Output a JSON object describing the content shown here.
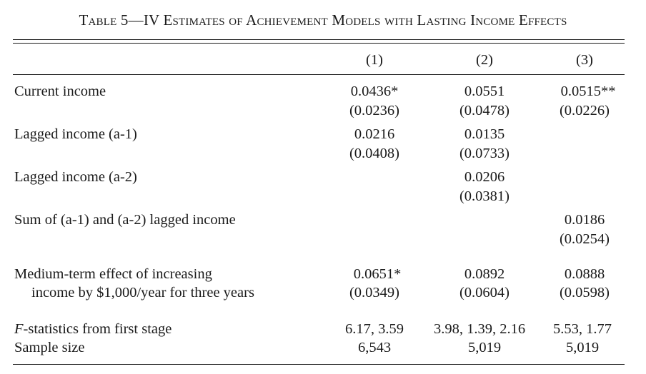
{
  "title": "Table 5—IV Estimates of Achievement Models with Lasting Income Effects",
  "columns": [
    "(1)",
    "(2)",
    "(3)"
  ],
  "rows": [
    {
      "label": "Current income",
      "coef": [
        "0.0436*",
        "0.0551",
        "0.0515**"
      ],
      "se": [
        "(0.0236)",
        "(0.0478)",
        "(0.0226)"
      ]
    },
    {
      "label": "Lagged income (a-1)",
      "coef": [
        "0.0216",
        "0.0135",
        ""
      ],
      "se": [
        "(0.0408)",
        "(0.0733)",
        ""
      ]
    },
    {
      "label": "Lagged income (a-2)",
      "coef": [
        "",
        "0.0206",
        ""
      ],
      "se": [
        "",
        "(0.0381)",
        ""
      ]
    },
    {
      "label": "Sum of (a-1) and (a-2) lagged income",
      "coef": [
        "",
        "",
        "0.0186"
      ],
      "se": [
        "",
        "",
        "(0.0254)"
      ]
    },
    {
      "label": "Medium-term effect of increasing",
      "label2": "income by $1,000/year for three years",
      "coef": [
        "0.0651*",
        "0.0892",
        "0.0888"
      ],
      "se": [
        "(0.0349)",
        "(0.0604)",
        "(0.0598)"
      ]
    }
  ],
  "fstat": {
    "label_italic": "F",
    "label_rest": "-statistics from first stage",
    "values": [
      "6.17, 3.59",
      "3.98, 1.39, 2.16",
      "5.53, 1.77"
    ]
  },
  "sample": {
    "label": "Sample size",
    "values": [
      "6,543",
      "5,019",
      "5,019"
    ]
  }
}
